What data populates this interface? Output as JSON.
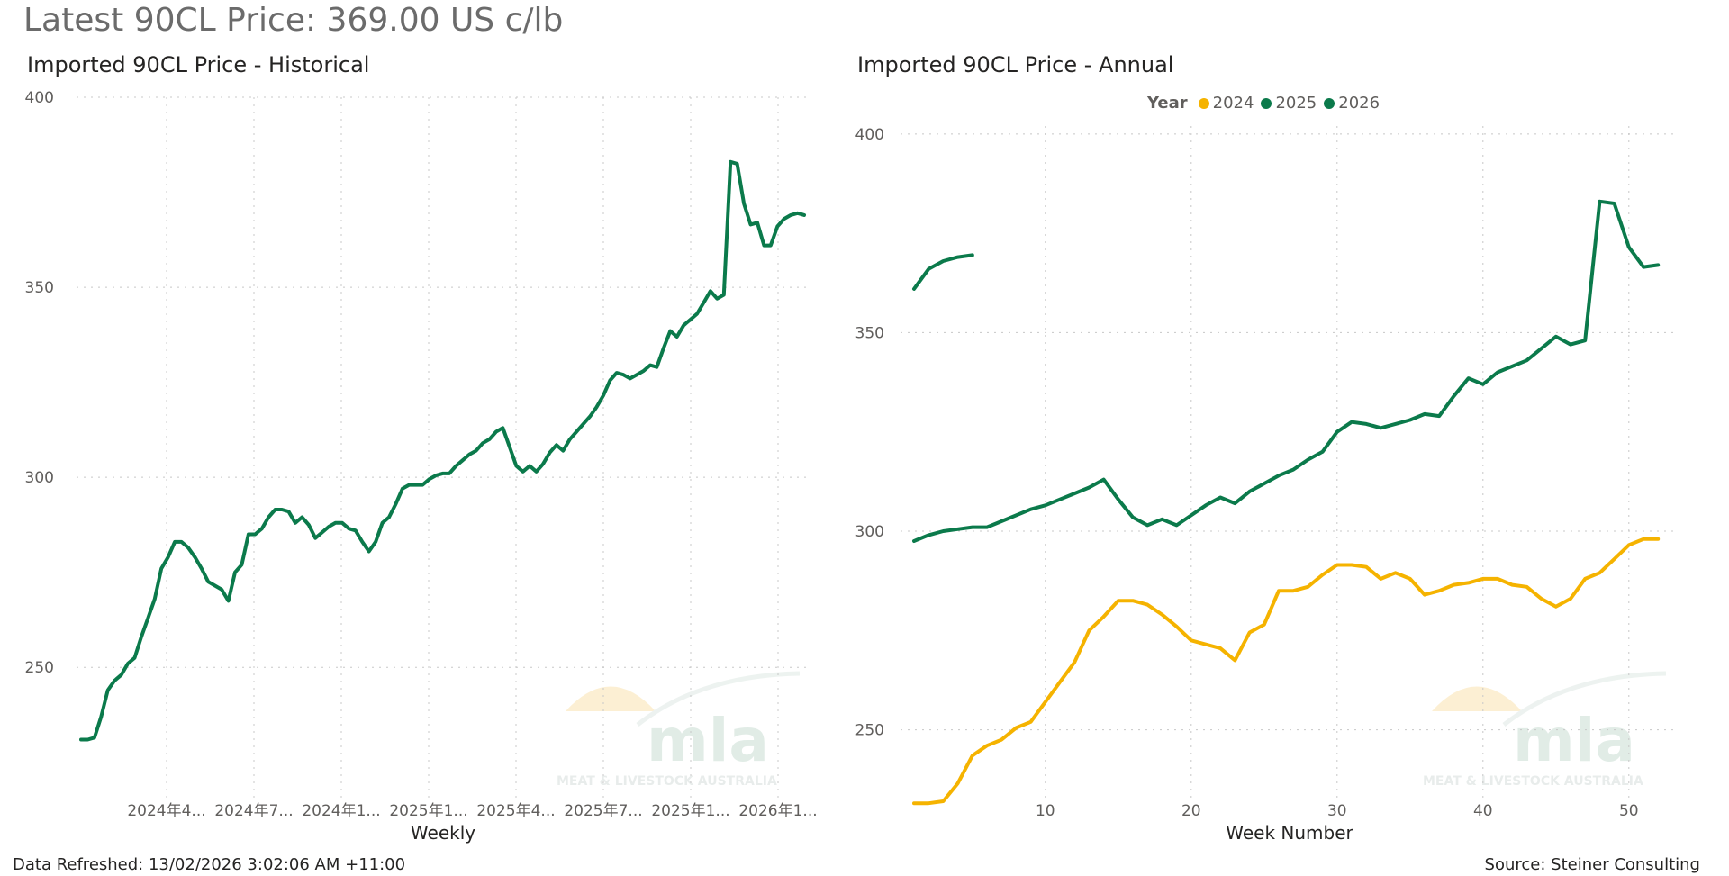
{
  "header": {
    "title": "Latest 90CL Price: 369.00 US c/lb"
  },
  "footer": {
    "refreshed": "Data Refreshed: 13/02/2026 3:02:06 AM +11:00",
    "source": "Source: Steiner Consulting"
  },
  "watermark": {
    "logo_text": "mla",
    "subtitle": "MEAT & LIVESTOCK AUSTRALIA"
  },
  "colors": {
    "green": "#0b7a4b",
    "gold": "#f5b300",
    "grid": "#c8c8c8",
    "axis_text": "#605e5c"
  },
  "chart_data": [
    {
      "type": "line",
      "title": "Imported 90CL Price - Historical",
      "xlabel": "Weekly",
      "ylabel": "",
      "ylim": [
        215,
        400
      ],
      "yticks": [
        250,
        300,
        350,
        400
      ],
      "xtick_labels": [
        "2024年4...",
        "2024年7...",
        "2024年1...",
        "2025年1...",
        "2025年4...",
        "2025年7...",
        "2025年1...",
        "2026年1..."
      ],
      "grid": true,
      "series": [
        {
          "color": "#0b7a4b",
          "values": [
            231,
            231,
            231.5,
            237,
            244,
            246.5,
            248,
            251,
            252.5,
            258,
            263,
            268,
            276,
            279,
            283,
            283,
            281.5,
            279,
            276,
            272.5,
            271.5,
            270.5,
            267.5,
            275,
            277,
            285,
            285,
            286.5,
            289.5,
            291.5,
            291.5,
            291,
            288,
            289.5,
            287.5,
            284,
            285.5,
            287,
            288,
            288,
            286.5,
            286,
            283,
            280.5,
            283,
            288,
            289.5,
            293,
            297,
            298,
            298,
            298,
            299.5,
            300.5,
            301,
            301,
            303,
            304.5,
            306,
            307,
            309,
            310,
            312,
            313,
            308,
            303,
            301.5,
            303,
            301.5,
            303.5,
            306.5,
            308.5,
            307,
            310,
            312,
            314,
            316,
            318.5,
            321.5,
            325.5,
            327.5,
            327,
            326,
            327,
            328,
            329.5,
            329,
            334,
            338.5,
            337,
            340,
            341.5,
            343,
            346,
            349,
            347,
            348,
            383,
            382.5,
            372,
            366.5,
            367,
            361,
            361,
            366,
            368,
            369,
            369.5,
            369
          ]
        }
      ]
    },
    {
      "type": "line",
      "title": "Imported 90CL Price - Annual",
      "xlabel": "Week Number",
      "ylabel": "",
      "xlim": [
        1,
        53
      ],
      "ylim": [
        232,
        402
      ],
      "yticks": [
        250,
        300,
        350,
        400
      ],
      "xticks": [
        10,
        20,
        30,
        40,
        50
      ],
      "grid": true,
      "legend": {
        "title": "Year",
        "position": "top"
      },
      "series": [
        {
          "name": "2024",
          "color": "#f5b300",
          "x": [
            1,
            2,
            3,
            4,
            5,
            6,
            7,
            8,
            9,
            10,
            11,
            12,
            13,
            14,
            15,
            16,
            17,
            18,
            19,
            20,
            21,
            22,
            23,
            24,
            25,
            26,
            27,
            28,
            29,
            30,
            31,
            32,
            33,
            34,
            35,
            36,
            37,
            38,
            39,
            40,
            41,
            42,
            43,
            44,
            45,
            46,
            47,
            48,
            49,
            50,
            51,
            52
          ],
          "values": [
            231.5,
            231.5,
            232,
            236.5,
            243.5,
            246,
            247.5,
            250.5,
            252,
            257,
            262,
            267,
            275,
            278.5,
            282.5,
            282.5,
            281.5,
            279,
            276,
            272.5,
            271.5,
            270.5,
            267.5,
            274.5,
            276.5,
            285,
            285,
            286,
            289,
            291.5,
            291.5,
            291,
            288,
            289.5,
            288,
            284,
            285,
            286.5,
            287,
            288,
            288,
            286.5,
            286,
            283,
            281,
            283,
            288,
            289.5,
            293,
            296.5,
            298,
            298
          ]
        },
        {
          "name": "2025",
          "color": "#0b7a4b",
          "x": [
            1,
            2,
            3,
            4,
            5,
            6,
            7,
            8,
            9,
            10,
            11,
            12,
            13,
            14,
            15,
            16,
            17,
            18,
            19,
            20,
            21,
            22,
            23,
            24,
            25,
            26,
            27,
            28,
            29,
            30,
            31,
            32,
            33,
            34,
            35,
            36,
            37,
            38,
            39,
            40,
            41,
            42,
            43,
            44,
            45,
            46,
            47,
            48,
            49,
            50,
            51,
            52
          ],
          "values": [
            297.5,
            299,
            300,
            300.5,
            301,
            301,
            302.5,
            304,
            305.5,
            306.5,
            308,
            309.5,
            311,
            313,
            308,
            303.5,
            301.5,
            303,
            301.5,
            304,
            306.5,
            308.5,
            307,
            310,
            312,
            314,
            315.5,
            318,
            320,
            325,
            327.5,
            327,
            326,
            327,
            328,
            329.5,
            329,
            334,
            338.5,
            337,
            340,
            341.5,
            343,
            346,
            349,
            347,
            348,
            383,
            382.5,
            371.5,
            366.5,
            367
          ]
        },
        {
          "name": "2026",
          "color": "#0b7a4b",
          "x": [
            1,
            2,
            3,
            4,
            5
          ],
          "values": [
            361,
            366,
            368,
            369,
            369.5
          ]
        }
      ]
    }
  ]
}
